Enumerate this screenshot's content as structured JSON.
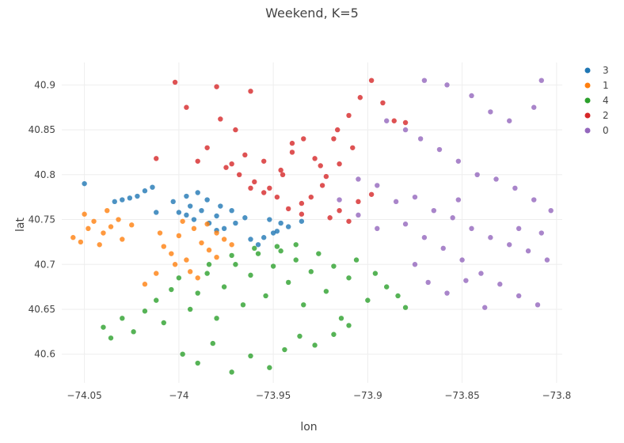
{
  "chart_data": {
    "type": "scatter",
    "title": "Weekend, K=5",
    "xlabel": "lon",
    "ylabel": "lat",
    "xlim": [
      -74.062,
      -73.797
    ],
    "ylim": [
      40.568,
      40.925
    ],
    "x_ticks": [
      -74.05,
      -74.0,
      -73.95,
      -73.9,
      -73.85,
      -73.8
    ],
    "x_tick_labels": [
      "−74.05",
      "−74",
      "−73.95",
      "−73.9",
      "−73.85",
      "−73.8"
    ],
    "y_ticks": [
      40.6,
      40.65,
      40.7,
      40.75,
      40.8,
      40.85,
      40.9
    ],
    "y_tick_labels": [
      "40.6",
      "40.65",
      "40.7",
      "40.75",
      "40.8",
      "40.85",
      "40.9"
    ],
    "grid": true,
    "legend_position": "top-right",
    "series": [
      {
        "name": "3",
        "color": "#1f77b4",
        "points": [
          [
            -74.05,
            40.79
          ],
          [
            -74.018,
            40.782
          ],
          [
            -74.014,
            40.786
          ],
          [
            -74.022,
            40.776
          ],
          [
            -74.034,
            40.77
          ],
          [
            -74.03,
            40.772
          ],
          [
            -74.026,
            40.774
          ],
          [
            -74.012,
            40.758
          ],
          [
            -74.003,
            40.77
          ],
          [
            -73.996,
            40.776
          ],
          [
            -73.99,
            40.78
          ],
          [
            -73.985,
            40.772
          ],
          [
            -73.978,
            40.765
          ],
          [
            -73.972,
            40.76
          ],
          [
            -73.965,
            40.752
          ],
          [
            -73.994,
            40.765
          ],
          [
            -73.988,
            40.76
          ],
          [
            -73.98,
            40.754
          ],
          [
            -73.97,
            40.746
          ],
          [
            -74.0,
            40.758
          ],
          [
            -73.992,
            40.75
          ],
          [
            -73.984,
            40.746
          ],
          [
            -73.976,
            40.74
          ],
          [
            -73.996,
            40.755
          ],
          [
            -73.98,
            40.738
          ],
          [
            -73.952,
            40.75
          ],
          [
            -73.946,
            40.746
          ],
          [
            -73.95,
            40.735
          ],
          [
            -73.955,
            40.73
          ],
          [
            -73.942,
            40.742
          ],
          [
            -73.935,
            40.748
          ],
          [
            -73.958,
            40.722
          ],
          [
            -73.962,
            40.728
          ],
          [
            -73.948,
            40.737
          ]
        ]
      },
      {
        "name": "1",
        "color": "#ff7f0e",
        "points": [
          [
            -74.056,
            40.73
          ],
          [
            -74.052,
            40.725
          ],
          [
            -74.048,
            40.74
          ],
          [
            -74.045,
            40.748
          ],
          [
            -74.04,
            40.735
          ],
          [
            -74.036,
            40.742
          ],
          [
            -74.032,
            40.75
          ],
          [
            -74.03,
            40.728
          ],
          [
            -74.042,
            40.722
          ],
          [
            -74.038,
            40.76
          ],
          [
            -74.05,
            40.756
          ],
          [
            -74.025,
            40.744
          ],
          [
            -74.008,
            40.72
          ],
          [
            -74.004,
            40.712
          ],
          [
            -74.0,
            40.732
          ],
          [
            -73.996,
            40.705
          ],
          [
            -73.992,
            40.74
          ],
          [
            -73.988,
            40.724
          ],
          [
            -73.984,
            40.716
          ],
          [
            -73.98,
            40.735
          ],
          [
            -73.976,
            40.728
          ],
          [
            -73.985,
            40.745
          ],
          [
            -73.998,
            40.748
          ],
          [
            -74.01,
            40.735
          ],
          [
            -74.002,
            40.7
          ],
          [
            -73.994,
            40.692
          ],
          [
            -74.012,
            40.69
          ],
          [
            -74.018,
            40.678
          ],
          [
            -73.99,
            40.685
          ],
          [
            -73.98,
            40.708
          ],
          [
            -73.972,
            40.722
          ]
        ]
      },
      {
        "name": "4",
        "color": "#2ca02c",
        "points": [
          [
            -74.04,
            40.63
          ],
          [
            -74.036,
            40.618
          ],
          [
            -74.03,
            40.64
          ],
          [
            -74.024,
            40.625
          ],
          [
            -74.018,
            40.648
          ],
          [
            -74.012,
            40.66
          ],
          [
            -74.008,
            40.635
          ],
          [
            -74.004,
            40.672
          ],
          [
            -74.0,
            40.685
          ],
          [
            -73.994,
            40.65
          ],
          [
            -73.99,
            40.668
          ],
          [
            -73.985,
            40.69
          ],
          [
            -73.98,
            40.64
          ],
          [
            -73.976,
            40.675
          ],
          [
            -73.97,
            40.7
          ],
          [
            -73.966,
            40.655
          ],
          [
            -73.962,
            40.688
          ],
          [
            -73.958,
            40.712
          ],
          [
            -73.954,
            40.665
          ],
          [
            -73.95,
            40.698
          ],
          [
            -73.946,
            40.715
          ],
          [
            -73.942,
            40.68
          ],
          [
            -73.938,
            40.705
          ],
          [
            -73.934,
            40.655
          ],
          [
            -73.93,
            40.692
          ],
          [
            -73.926,
            40.712
          ],
          [
            -73.922,
            40.67
          ],
          [
            -73.918,
            40.698
          ],
          [
            -73.914,
            40.64
          ],
          [
            -73.91,
            40.685
          ],
          [
            -73.906,
            40.705
          ],
          [
            -73.9,
            40.66
          ],
          [
            -73.896,
            40.69
          ],
          [
            -73.89,
            40.675
          ],
          [
            -73.884,
            40.665
          ],
          [
            -73.88,
            40.652
          ],
          [
            -73.998,
            40.6
          ],
          [
            -73.99,
            40.59
          ],
          [
            -73.982,
            40.612
          ],
          [
            -73.972,
            40.58
          ],
          [
            -73.962,
            40.598
          ],
          [
            -73.952,
            40.585
          ],
          [
            -73.944,
            40.605
          ],
          [
            -73.936,
            40.62
          ],
          [
            -73.928,
            40.61
          ],
          [
            -73.918,
            40.622
          ],
          [
            -73.91,
            40.632
          ],
          [
            -73.948,
            40.72
          ],
          [
            -73.96,
            40.718
          ],
          [
            -73.938,
            40.722
          ],
          [
            -73.972,
            40.71
          ],
          [
            -73.984,
            40.7
          ]
        ]
      },
      {
        "name": "2",
        "color": "#d62728",
        "points": [
          [
            -74.002,
            40.903
          ],
          [
            -73.98,
            40.898
          ],
          [
            -73.962,
            40.893
          ],
          [
            -73.996,
            40.875
          ],
          [
            -73.978,
            40.862
          ],
          [
            -73.97,
            40.85
          ],
          [
            -73.985,
            40.83
          ],
          [
            -73.99,
            40.815
          ],
          [
            -74.012,
            40.818
          ],
          [
            -73.975,
            40.808
          ],
          [
            -73.968,
            40.8
          ],
          [
            -73.96,
            40.792
          ],
          [
            -73.952,
            40.785
          ],
          [
            -73.946,
            40.805
          ],
          [
            -73.94,
            40.825
          ],
          [
            -73.934,
            40.84
          ],
          [
            -73.928,
            40.818
          ],
          [
            -73.922,
            40.798
          ],
          [
            -73.916,
            40.85
          ],
          [
            -73.91,
            40.866
          ],
          [
            -73.904,
            40.886
          ],
          [
            -73.898,
            40.905
          ],
          [
            -73.892,
            40.88
          ],
          [
            -73.886,
            40.86
          ],
          [
            -73.88,
            40.858
          ],
          [
            -73.918,
            40.84
          ],
          [
            -73.908,
            40.83
          ],
          [
            -73.924,
            40.788
          ],
          [
            -73.93,
            40.775
          ],
          [
            -73.935,
            40.768
          ],
          [
            -73.942,
            40.762
          ],
          [
            -73.948,
            40.775
          ],
          [
            -73.955,
            40.78
          ],
          [
            -73.962,
            40.785
          ],
          [
            -73.915,
            40.76
          ],
          [
            -73.91,
            40.748
          ],
          [
            -73.92,
            40.752
          ],
          [
            -73.905,
            40.77
          ],
          [
            -73.898,
            40.778
          ],
          [
            -73.935,
            40.756
          ],
          [
            -73.945,
            40.8
          ],
          [
            -73.955,
            40.815
          ],
          [
            -73.94,
            40.835
          ],
          [
            -73.972,
            40.812
          ],
          [
            -73.965,
            40.822
          ],
          [
            -73.925,
            40.81
          ],
          [
            -73.915,
            40.812
          ]
        ]
      },
      {
        "name": "0",
        "color": "#9467bd",
        "points": [
          [
            -73.905,
            40.795
          ],
          [
            -73.895,
            40.788
          ],
          [
            -73.885,
            40.77
          ],
          [
            -73.875,
            40.775
          ],
          [
            -73.865,
            40.76
          ],
          [
            -73.855,
            40.752
          ],
          [
            -73.845,
            40.74
          ],
          [
            -73.835,
            40.73
          ],
          [
            -73.825,
            40.722
          ],
          [
            -73.815,
            40.715
          ],
          [
            -73.805,
            40.705
          ],
          [
            -73.88,
            40.745
          ],
          [
            -73.87,
            40.73
          ],
          [
            -73.86,
            40.718
          ],
          [
            -73.85,
            40.705
          ],
          [
            -73.84,
            40.69
          ],
          [
            -73.83,
            40.678
          ],
          [
            -73.82,
            40.665
          ],
          [
            -73.81,
            40.655
          ],
          [
            -73.875,
            40.7
          ],
          [
            -73.868,
            40.68
          ],
          [
            -73.858,
            40.668
          ],
          [
            -73.848,
            40.682
          ],
          [
            -73.838,
            40.652
          ],
          [
            -73.89,
            40.86
          ],
          [
            -73.88,
            40.85
          ],
          [
            -73.872,
            40.84
          ],
          [
            -73.862,
            40.828
          ],
          [
            -73.852,
            40.815
          ],
          [
            -73.842,
            40.8
          ],
          [
            -73.832,
            40.795
          ],
          [
            -73.822,
            40.785
          ],
          [
            -73.812,
            40.772
          ],
          [
            -73.803,
            40.76
          ],
          [
            -73.87,
            40.905
          ],
          [
            -73.858,
            40.9
          ],
          [
            -73.845,
            40.888
          ],
          [
            -73.835,
            40.87
          ],
          [
            -73.825,
            40.86
          ],
          [
            -73.812,
            40.875
          ],
          [
            -73.808,
            40.905
          ],
          [
            -73.895,
            40.74
          ],
          [
            -73.905,
            40.755
          ],
          [
            -73.915,
            40.772
          ],
          [
            -73.82,
            40.74
          ],
          [
            -73.808,
            40.735
          ],
          [
            -73.852,
            40.772
          ]
        ]
      }
    ]
  }
}
